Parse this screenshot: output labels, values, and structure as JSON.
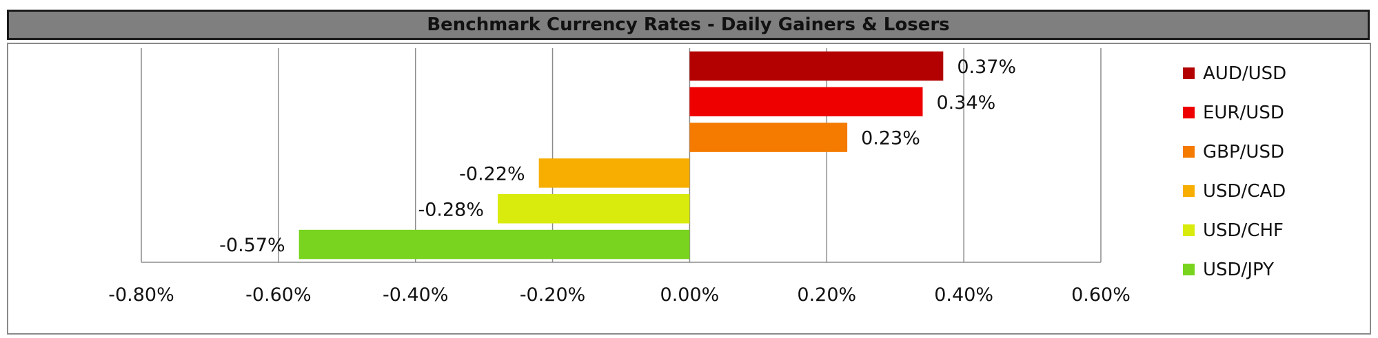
{
  "chart_data": {
    "type": "bar",
    "orientation": "horizontal",
    "title": "Benchmark Currency Rates - Daily Gainers & Losers",
    "categories": [
      "AUD/USD",
      "EUR/USD",
      "GBP/USD",
      "USD/CAD",
      "USD/CHF",
      "USD/JPY"
    ],
    "values": [
      0.37,
      0.34,
      0.23,
      -0.22,
      -0.28,
      -0.57
    ],
    "data_labels": [
      "0.37%",
      "0.34%",
      "0.23%",
      "-0.22%",
      "-0.28%",
      "-0.57%"
    ],
    "colors": [
      "#b30000",
      "#ee0000",
      "#f47a00",
      "#f7ae00",
      "#d9eb0c",
      "#78d41e"
    ],
    "xlim": [
      -0.8,
      0.6
    ],
    "xticks": [
      -0.8,
      -0.6,
      -0.4,
      -0.2,
      0.0,
      0.2,
      0.4,
      0.6
    ],
    "xtick_labels": [
      "-0.80%",
      "-0.60%",
      "-0.40%",
      "-0.20%",
      "0.00%",
      "0.20%",
      "0.40%",
      "0.60%"
    ],
    "grid": "vertical",
    "legend": "right"
  }
}
